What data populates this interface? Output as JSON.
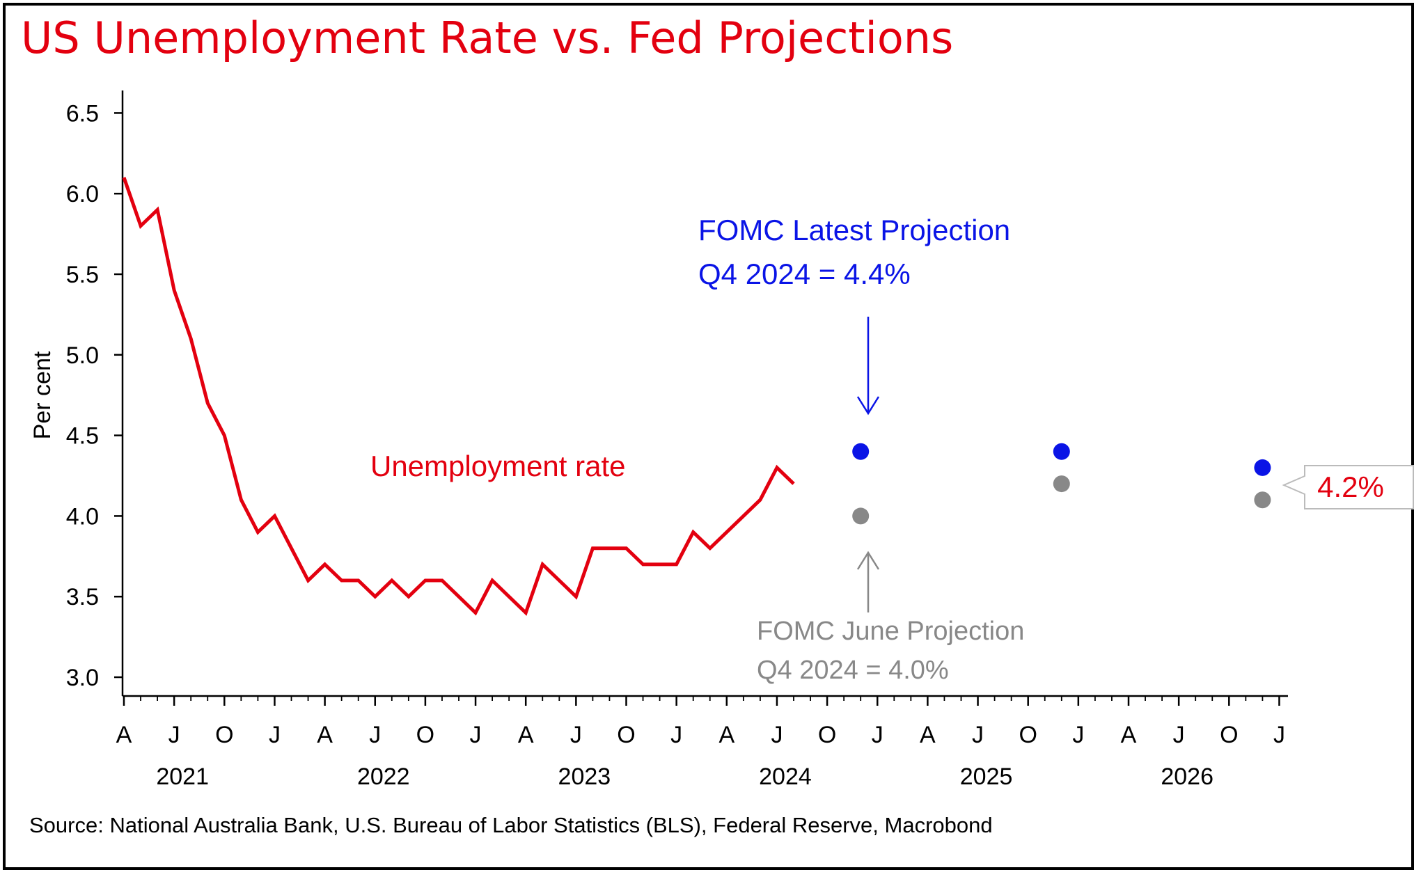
{
  "title": "US Unemployment Rate vs. Fed Projections",
  "source": "Source: National Australia Bank, U.S. Bureau of Labor Statistics (BLS), Federal Reserve, Macrobond",
  "colors": {
    "title": "#e3000f",
    "unemployment": "#e3000f",
    "latest_projection": "#0a14e6",
    "june_projection": "#888888",
    "axis": "#000000"
  },
  "chart_data": {
    "type": "line",
    "ylabel": "Per cent",
    "xlabel": "",
    "ylim": [
      3.0,
      6.5
    ],
    "yticks": [
      "3.0",
      "3.5",
      "4.0",
      "4.5",
      "5.0",
      "5.5",
      "6.0",
      "6.5"
    ],
    "x_range": [
      "2021-04",
      "2027-01"
    ],
    "month_tick_labels": [
      "A",
      "J",
      "O",
      "J",
      "A",
      "J",
      "O",
      "J",
      "A",
      "J",
      "O",
      "J",
      "A",
      "J",
      "O",
      "J",
      "A",
      "J",
      "O",
      "J",
      "A",
      "J",
      "O",
      "J"
    ],
    "year_labels": [
      "2021",
      "2022",
      "2023",
      "2024",
      "2025",
      "2026"
    ],
    "series": [
      {
        "name": "Unemployment rate",
        "kind": "line",
        "color": "#e3000f",
        "x": [
          "2021-04",
          "2021-05",
          "2021-06",
          "2021-07",
          "2021-08",
          "2021-09",
          "2021-10",
          "2021-11",
          "2021-12",
          "2022-01",
          "2022-02",
          "2022-03",
          "2022-04",
          "2022-05",
          "2022-06",
          "2022-07",
          "2022-08",
          "2022-09",
          "2022-10",
          "2022-11",
          "2022-12",
          "2023-01",
          "2023-02",
          "2023-03",
          "2023-04",
          "2023-05",
          "2023-06",
          "2023-07",
          "2023-08",
          "2023-09",
          "2023-10",
          "2023-11",
          "2023-12",
          "2024-01",
          "2024-02",
          "2024-03",
          "2024-04",
          "2024-05",
          "2024-06",
          "2024-07",
          "2024-08"
        ],
        "values": [
          6.1,
          5.8,
          5.9,
          5.4,
          5.1,
          4.7,
          4.5,
          4.1,
          3.9,
          4.0,
          3.8,
          3.6,
          3.7,
          3.6,
          3.6,
          3.5,
          3.6,
          3.5,
          3.6,
          3.6,
          3.5,
          3.4,
          3.6,
          3.5,
          3.4,
          3.7,
          3.6,
          3.5,
          3.8,
          3.8,
          3.8,
          3.7,
          3.7,
          3.7,
          3.9,
          3.8,
          3.9,
          4.0,
          4.1,
          4.3,
          4.2
        ]
      },
      {
        "name": "FOMC Latest Projection",
        "kind": "points",
        "color": "#0a14e6",
        "x": [
          "2024-12",
          "2025-12",
          "2026-12"
        ],
        "values": [
          4.4,
          4.4,
          4.3
        ]
      },
      {
        "name": "FOMC June Projection",
        "kind": "points",
        "color": "#888888",
        "x": [
          "2024-12",
          "2025-12",
          "2026-12"
        ],
        "values": [
          4.0,
          4.2,
          4.1
        ]
      }
    ],
    "annotations": {
      "series_label": "Unemployment rate",
      "latest_line1": "FOMC Latest Projection",
      "latest_line2": "Q4 2024 = 4.4%",
      "june_line1": "FOMC June Projection",
      "june_line2": "Q4 2024 = 4.0%",
      "callout": "4.2%"
    }
  }
}
